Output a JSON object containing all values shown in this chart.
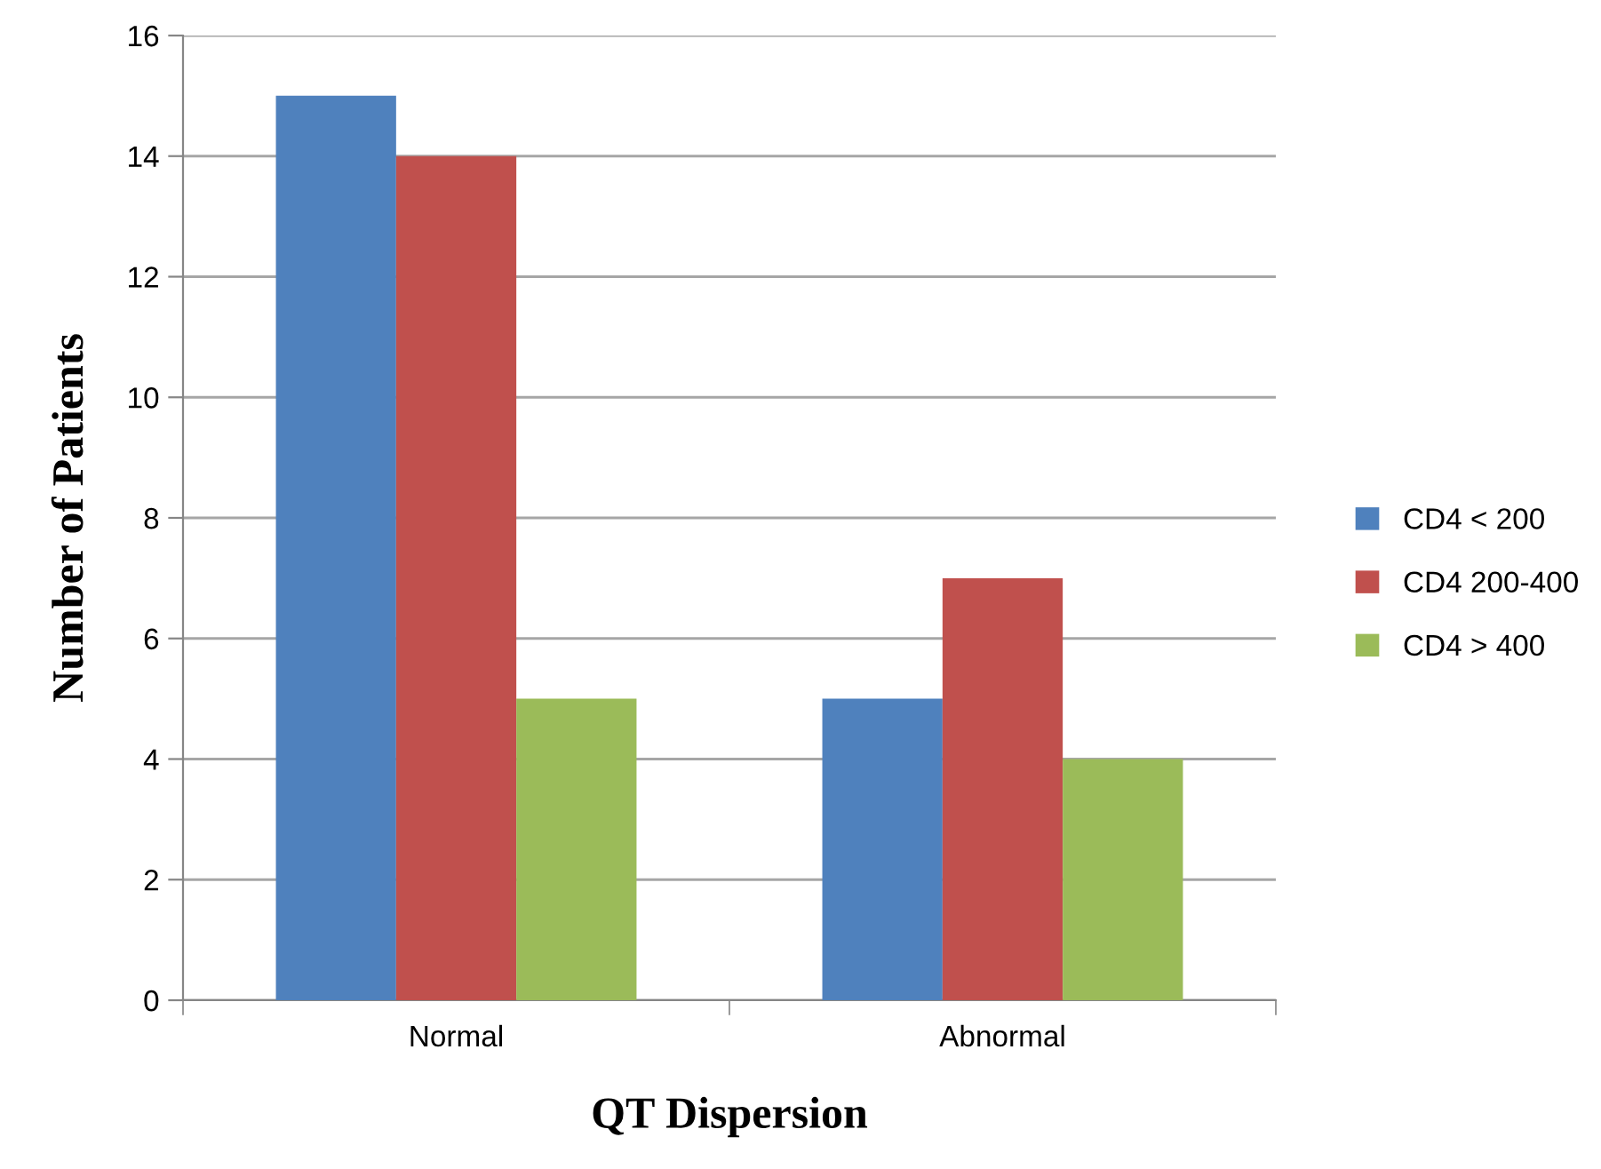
{
  "chart_data": {
    "type": "bar",
    "xlabel": "QT Dispersion",
    "ylabel": "Number of Patients",
    "categories": [
      "Normal",
      "Abnormal"
    ],
    "series": [
      {
        "name": "CD4 < 200",
        "color": "#4f81bd",
        "values": [
          15,
          5
        ]
      },
      {
        "name": "CD4 200-400",
        "color": "#c0504d",
        "values": [
          14,
          7
        ]
      },
      {
        "name": "CD4 > 400",
        "color": "#9bbb59",
        "values": [
          5,
          4
        ]
      }
    ],
    "ylim": [
      0,
      16
    ],
    "yticks": [
      0,
      2,
      4,
      6,
      8,
      10,
      12,
      14,
      16
    ],
    "grid": "y",
    "legend": "right"
  }
}
